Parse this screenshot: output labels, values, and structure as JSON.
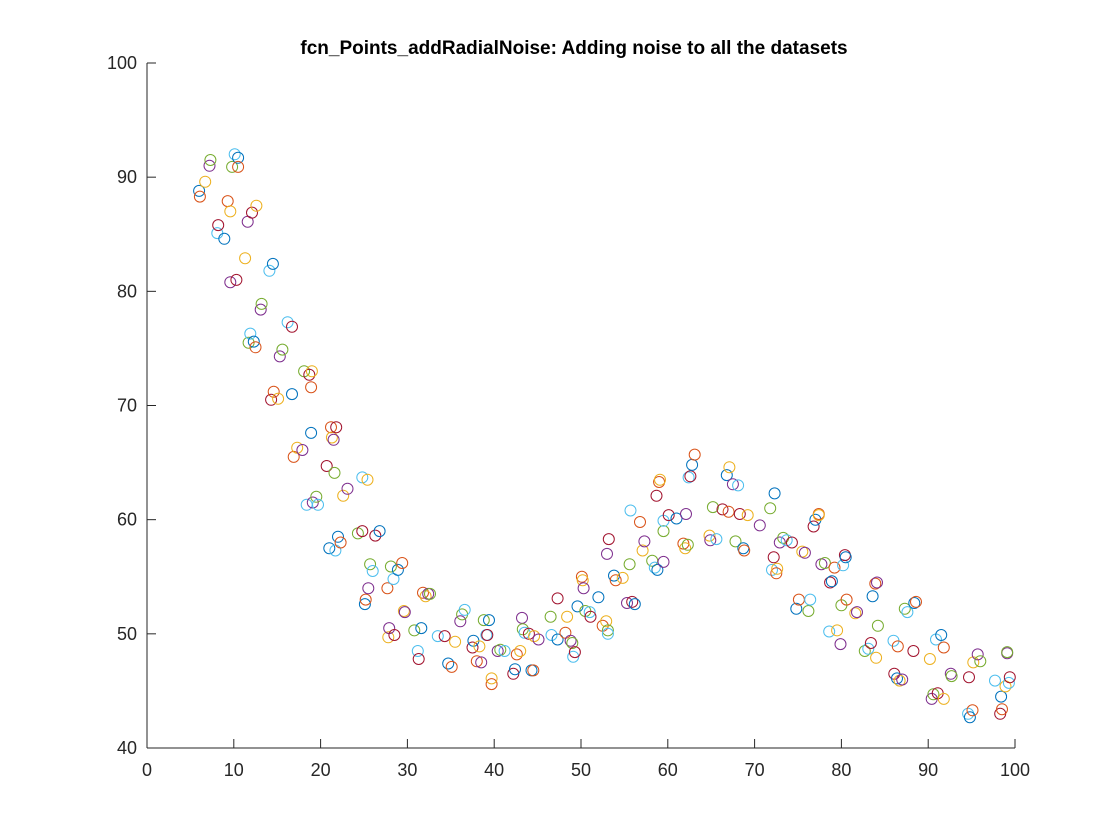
{
  "chart_data": {
    "type": "scatter",
    "title": "fcn_Points_addRadialNoise: Adding noise to all the datasets",
    "xlabel": "",
    "ylabel": "",
    "xlim": [
      0,
      100
    ],
    "ylim": [
      40,
      100
    ],
    "xticks": [
      "0",
      "10",
      "20",
      "30",
      "40",
      "50",
      "60",
      "70",
      "80",
      "90",
      "100"
    ],
    "yticks": [
      "40",
      "50",
      "60",
      "70",
      "80",
      "90",
      "100"
    ],
    "grid": false,
    "marker": "open-circle",
    "colors": [
      "#0072BD",
      "#D95319",
      "#EDB120",
      "#7E2F8E",
      "#77AC30",
      "#4DBEEE",
      "#A2142F"
    ],
    "points": [
      [
        6.0,
        88.8
      ],
      [
        6.1,
        88.3
      ],
      [
        6.7,
        89.6
      ],
      [
        7.2,
        91.0
      ],
      [
        7.3,
        91.5
      ],
      [
        8.1,
        85.1
      ],
      [
        8.2,
        85.8
      ],
      [
        8.9,
        84.6
      ],
      [
        9.3,
        87.9
      ],
      [
        9.6,
        87.0
      ],
      [
        9.6,
        80.8
      ],
      [
        9.8,
        90.9
      ],
      [
        10.1,
        92.0
      ],
      [
        10.3,
        81.0
      ],
      [
        10.5,
        91.7
      ],
      [
        10.5,
        90.9
      ],
      [
        11.3,
        82.9
      ],
      [
        11.6,
        86.1
      ],
      [
        11.7,
        75.5
      ],
      [
        11.9,
        76.3
      ],
      [
        12.1,
        86.9
      ],
      [
        12.3,
        75.6
      ],
      [
        12.5,
        75.1
      ],
      [
        12.6,
        87.5
      ],
      [
        13.1,
        78.4
      ],
      [
        13.2,
        78.9
      ],
      [
        14.1,
        81.8
      ],
      [
        14.3,
        70.5
      ],
      [
        14.5,
        82.4
      ],
      [
        14.6,
        71.2
      ],
      [
        15.1,
        70.6
      ],
      [
        15.3,
        74.3
      ],
      [
        15.6,
        74.9
      ],
      [
        16.2,
        77.3
      ],
      [
        16.7,
        76.9
      ],
      [
        16.7,
        71.0
      ],
      [
        16.9,
        65.5
      ],
      [
        17.3,
        66.3
      ],
      [
        17.9,
        66.1
      ],
      [
        18.1,
        73.0
      ],
      [
        18.4,
        61.3
      ],
      [
        18.7,
        72.7
      ],
      [
        18.9,
        67.6
      ],
      [
        18.9,
        71.6
      ],
      [
        19.0,
        73.0
      ],
      [
        19.1,
        61.5
      ],
      [
        19.5,
        62.0
      ],
      [
        19.7,
        61.3
      ],
      [
        20.7,
        64.7
      ],
      [
        21.0,
        57.5
      ],
      [
        21.2,
        68.1
      ],
      [
        21.3,
        67.2
      ],
      [
        21.5,
        67.0
      ],
      [
        21.6,
        64.1
      ],
      [
        21.7,
        57.3
      ],
      [
        21.8,
        68.1
      ],
      [
        22.0,
        58.5
      ],
      [
        22.3,
        58.0
      ],
      [
        22.6,
        62.1
      ],
      [
        23.1,
        62.7
      ],
      [
        24.3,
        58.8
      ],
      [
        24.8,
        63.7
      ],
      [
        24.8,
        59.0
      ],
      [
        25.1,
        52.6
      ],
      [
        25.2,
        53.0
      ],
      [
        25.4,
        63.5
      ],
      [
        25.5,
        54.0
      ],
      [
        25.7,
        56.1
      ],
      [
        26.0,
        55.5
      ],
      [
        26.3,
        58.6
      ],
      [
        26.8,
        59.0
      ],
      [
        27.7,
        54.0
      ],
      [
        27.8,
        49.7
      ],
      [
        27.9,
        50.5
      ],
      [
        28.1,
        55.9
      ],
      [
        28.4,
        54.8
      ],
      [
        28.5,
        49.9
      ],
      [
        28.9,
        55.6
      ],
      [
        29.4,
        56.2
      ],
      [
        29.6,
        52.0
      ],
      [
        29.7,
        51.9
      ],
      [
        30.8,
        50.3
      ],
      [
        31.2,
        48.5
      ],
      [
        31.3,
        47.8
      ],
      [
        31.6,
        50.5
      ],
      [
        31.8,
        53.6
      ],
      [
        32.1,
        53.3
      ],
      [
        32.4,
        53.5
      ],
      [
        32.6,
        53.5
      ],
      [
        33.5,
        49.8
      ],
      [
        34.3,
        49.8
      ],
      [
        34.7,
        47.4
      ],
      [
        35.1,
        47.1
      ],
      [
        35.5,
        49.3
      ],
      [
        36.1,
        51.1
      ],
      [
        36.3,
        51.7
      ],
      [
        36.6,
        52.1
      ],
      [
        37.5,
        48.8
      ],
      [
        37.6,
        49.4
      ],
      [
        38.0,
        47.6
      ],
      [
        38.3,
        48.9
      ],
      [
        38.5,
        47.5
      ],
      [
        38.8,
        51.2
      ],
      [
        39.1,
        49.9
      ],
      [
        39.2,
        49.9
      ],
      [
        39.4,
        51.2
      ],
      [
        39.7,
        45.6
      ],
      [
        39.7,
        46.1
      ],
      [
        40.4,
        48.5
      ],
      [
        40.7,
        48.6
      ],
      [
        41.2,
        48.5
      ],
      [
        42.2,
        46.5
      ],
      [
        42.4,
        46.9
      ],
      [
        42.6,
        48.2
      ],
      [
        43.0,
        48.5
      ],
      [
        43.2,
        51.4
      ],
      [
        43.3,
        50.4
      ],
      [
        43.5,
        50.1
      ],
      [
        44.0,
        50.0
      ],
      [
        44.3,
        46.8
      ],
      [
        44.5,
        46.8
      ],
      [
        44.6,
        49.8
      ],
      [
        45.1,
        49.5
      ],
      [
        46.5,
        51.5
      ],
      [
        46.6,
        49.9
      ],
      [
        47.3,
        53.1
      ],
      [
        47.3,
        49.5
      ],
      [
        48.2,
        50.1
      ],
      [
        48.4,
        51.5
      ],
      [
        48.8,
        49.4
      ],
      [
        49.0,
        49.2
      ],
      [
        49.1,
        48.0
      ],
      [
        49.3,
        48.4
      ],
      [
        49.6,
        52.4
      ],
      [
        50.1,
        55.0
      ],
      [
        50.2,
        54.7
      ],
      [
        50.3,
        54.0
      ],
      [
        50.5,
        52.0
      ],
      [
        51.0,
        51.9
      ],
      [
        51.1,
        51.5
      ],
      [
        52.0,
        53.2
      ],
      [
        52.5,
        50.7
      ],
      [
        52.9,
        51.1
      ],
      [
        53.0,
        57.0
      ],
      [
        53.1,
        50.3
      ],
      [
        53.1,
        50.0
      ],
      [
        53.2,
        58.3
      ],
      [
        53.8,
        55.1
      ],
      [
        54.0,
        54.7
      ],
      [
        54.8,
        54.9
      ],
      [
        55.3,
        52.7
      ],
      [
        55.6,
        56.1
      ],
      [
        55.7,
        60.8
      ],
      [
        55.9,
        52.8
      ],
      [
        56.2,
        52.6
      ],
      [
        56.8,
        59.8
      ],
      [
        57.1,
        57.3
      ],
      [
        57.3,
        58.1
      ],
      [
        58.2,
        56.4
      ],
      [
        58.5,
        55.8
      ],
      [
        58.7,
        62.1
      ],
      [
        58.8,
        55.6
      ],
      [
        59.0,
        63.3
      ],
      [
        59.1,
        63.5
      ],
      [
        59.5,
        56.3
      ],
      [
        59.5,
        59.0
      ],
      [
        59.5,
        59.9
      ],
      [
        60.1,
        60.4
      ],
      [
        61.0,
        60.1
      ],
      [
        61.8,
        57.9
      ],
      [
        62.0,
        57.5
      ],
      [
        62.1,
        60.5
      ],
      [
        62.3,
        57.8
      ],
      [
        62.4,
        63.7
      ],
      [
        62.6,
        63.8
      ],
      [
        62.8,
        64.8
      ],
      [
        63.1,
        65.7
      ],
      [
        64.8,
        58.6
      ],
      [
        64.9,
        58.2
      ],
      [
        65.2,
        61.1
      ],
      [
        65.6,
        58.3
      ],
      [
        66.3,
        60.9
      ],
      [
        66.8,
        63.9
      ],
      [
        67.0,
        60.7
      ],
      [
        67.1,
        64.6
      ],
      [
        67.5,
        63.1
      ],
      [
        67.8,
        58.1
      ],
      [
        68.1,
        63.0
      ],
      [
        68.3,
        60.5
      ],
      [
        68.7,
        57.5
      ],
      [
        68.8,
        57.3
      ],
      [
        69.2,
        60.4
      ],
      [
        70.6,
        59.5
      ],
      [
        71.8,
        61.0
      ],
      [
        72.0,
        55.6
      ],
      [
        72.2,
        56.7
      ],
      [
        72.3,
        62.3
      ],
      [
        72.5,
        55.3
      ],
      [
        72.6,
        55.7
      ],
      [
        72.9,
        58.0
      ],
      [
        73.3,
        58.4
      ],
      [
        73.7,
        58.2
      ],
      [
        74.3,
        58.0
      ],
      [
        74.8,
        52.2
      ],
      [
        75.1,
        53.0
      ],
      [
        75.5,
        57.2
      ],
      [
        75.8,
        57.1
      ],
      [
        76.2,
        52.0
      ],
      [
        76.4,
        53.0
      ],
      [
        76.8,
        59.4
      ],
      [
        77.0,
        60.0
      ],
      [
        77.4,
        60.5
      ],
      [
        77.4,
        60.4
      ],
      [
        77.7,
        56.1
      ],
      [
        78.1,
        56.2
      ],
      [
        78.6,
        50.2
      ],
      [
        78.7,
        54.5
      ],
      [
        78.9,
        54.6
      ],
      [
        79.2,
        55.8
      ],
      [
        79.5,
        50.3
      ],
      [
        79.9,
        49.1
      ],
      [
        80.0,
        52.5
      ],
      [
        80.2,
        56.0
      ],
      [
        80.4,
        56.9
      ],
      [
        80.5,
        56.7
      ],
      [
        80.6,
        53.0
      ],
      [
        81.6,
        51.8
      ],
      [
        81.8,
        51.9
      ],
      [
        82.7,
        48.5
      ],
      [
        83.1,
        48.7
      ],
      [
        83.4,
        49.2
      ],
      [
        83.6,
        53.3
      ],
      [
        83.9,
        54.4
      ],
      [
        84.0,
        47.9
      ],
      [
        84.1,
        54.5
      ],
      [
        84.2,
        50.7
      ],
      [
        86.0,
        49.4
      ],
      [
        86.1,
        46.5
      ],
      [
        86.4,
        46.1
      ],
      [
        86.5,
        48.9
      ],
      [
        86.7,
        45.9
      ],
      [
        87.0,
        46.0
      ],
      [
        87.3,
        52.2
      ],
      [
        87.6,
        51.9
      ],
      [
        88.3,
        48.5
      ],
      [
        88.4,
        52.7
      ],
      [
        88.6,
        52.8
      ],
      [
        90.2,
        47.8
      ],
      [
        90.4,
        44.3
      ],
      [
        90.6,
        44.7
      ],
      [
        90.9,
        49.5
      ],
      [
        91.1,
        44.8
      ],
      [
        91.5,
        49.9
      ],
      [
        91.8,
        48.8
      ],
      [
        91.8,
        44.3
      ],
      [
        92.6,
        46.5
      ],
      [
        92.7,
        46.3
      ],
      [
        94.6,
        43.0
      ],
      [
        94.7,
        46.2
      ],
      [
        94.8,
        42.7
      ],
      [
        95.1,
        43.3
      ],
      [
        95.2,
        47.5
      ],
      [
        95.7,
        48.2
      ],
      [
        96.0,
        47.6
      ],
      [
        97.7,
        45.9
      ],
      [
        98.3,
        43.0
      ],
      [
        98.4,
        44.5
      ],
      [
        98.5,
        43.4
      ],
      [
        98.9,
        45.4
      ],
      [
        99.1,
        48.3
      ],
      [
        99.1,
        48.4
      ],
      [
        99.3,
        45.7
      ],
      [
        99.4,
        46.2
      ]
    ]
  }
}
